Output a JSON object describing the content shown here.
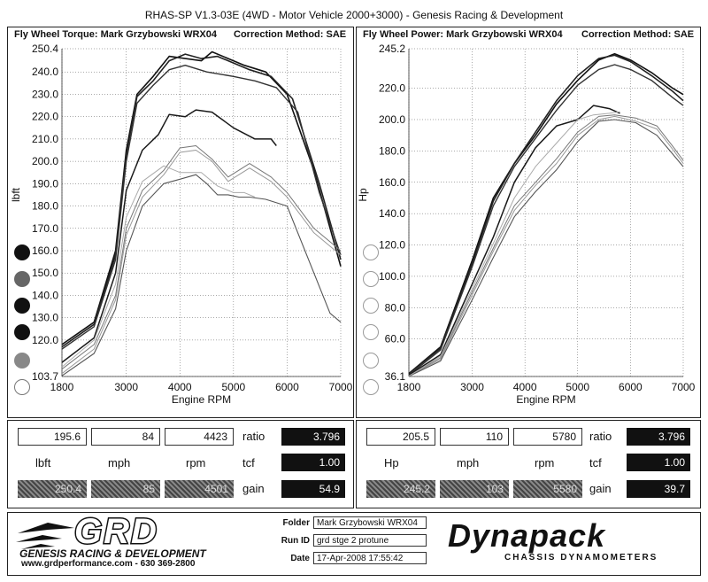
{
  "header": {
    "title": "RHAS-SP V1.3-03E  (4WD - Motor Vehicle 2000+3000) - Genesis Racing & Development"
  },
  "chart_data": [
    {
      "type": "line",
      "title": "Fly Wheel Torque: Mark Grzybowski WRX04",
      "correction": "Correction Method: SAE",
      "xlabel": "Engine RPM",
      "ylabel": "lbft",
      "xlim": [
        1800,
        7000
      ],
      "ylim": [
        103.7,
        250.4
      ],
      "xticks": [
        "1800",
        "3000",
        "4000",
        "5000",
        "6000",
        "7000"
      ],
      "xtick_values": [
        1800,
        3000,
        4000,
        5000,
        6000,
        7000
      ],
      "yticks": [
        "250.4",
        "240.0",
        "230.0",
        "220.0",
        "210.0",
        "200.0",
        "190.0",
        "180.0",
        "170.0",
        "160.0",
        "150.0",
        "140.0",
        "130.0",
        "120.0",
        "103.7"
      ],
      "ytick_values": [
        250.4,
        240,
        230,
        220,
        210,
        200,
        190,
        180,
        170,
        160,
        150,
        140,
        130,
        120,
        103.7
      ],
      "grid": true,
      "series": [
        {
          "values": [
            [
              1800,
              118
            ],
            [
              2400,
              128
            ],
            [
              2800,
              160
            ],
            [
              3000,
              205
            ],
            [
              3200,
              230
            ],
            [
              3500,
              238
            ],
            [
              3800,
              247
            ],
            [
              4100,
              246
            ],
            [
              4400,
              245
            ],
            [
              4600,
              249
            ],
            [
              4900,
              246
            ],
            [
              5200,
              243
            ],
            [
              5600,
              240
            ],
            [
              6000,
              230
            ],
            [
              6500,
              196
            ],
            [
              7000,
              153
            ]
          ]
        },
        {
          "values": [
            [
              1800,
              117
            ],
            [
              2400,
              127
            ],
            [
              2800,
              158
            ],
            [
              3000,
              203
            ],
            [
              3200,
              229
            ],
            [
              3500,
              236
            ],
            [
              3800,
              245
            ],
            [
              4100,
              248
            ],
            [
              4400,
              246
            ],
            [
              4700,
              247
            ],
            [
              5000,
              244
            ],
            [
              5300,
              241
            ],
            [
              5700,
              238
            ],
            [
              6100,
              228
            ],
            [
              6600,
              190
            ],
            [
              7000,
              156
            ]
          ]
        },
        {
          "values": [
            [
              1800,
              116
            ],
            [
              2400,
              126
            ],
            [
              2800,
              156
            ],
            [
              3000,
              200
            ],
            [
              3200,
              226
            ],
            [
              3500,
              234
            ],
            [
              3800,
              241
            ],
            [
              4100,
              243
            ],
            [
              4500,
              240
            ],
            [
              5000,
              238
            ],
            [
              5400,
              236
            ],
            [
              5800,
              233
            ],
            [
              6200,
              222
            ],
            [
              6600,
              186
            ],
            [
              7000,
              158
            ]
          ]
        },
        {
          "values": [
            [
              1800,
              110
            ],
            [
              2400,
              121
            ],
            [
              2800,
              150
            ],
            [
              3000,
              187
            ],
            [
              3300,
              205
            ],
            [
              3600,
              212
            ],
            [
              3800,
              221
            ],
            [
              4100,
              220
            ],
            [
              4300,
              223
            ],
            [
              4600,
              222
            ],
            [
              5000,
              215
            ],
            [
              5400,
              210
            ],
            [
              5700,
              210
            ],
            [
              5800,
              207
            ]
          ]
        },
        {
          "values": [
            [
              1800,
              107
            ],
            [
              2400,
              118
            ],
            [
              2800,
              140
            ],
            [
              3000,
              170
            ],
            [
              3300,
              187
            ],
            [
              3700,
              196
            ],
            [
              4000,
              206
            ],
            [
              4300,
              207
            ],
            [
              4600,
              201
            ],
            [
              4900,
              193
            ],
            [
              5300,
              199
            ],
            [
              5700,
              193
            ],
            [
              6000,
              186
            ],
            [
              6500,
              170
            ],
            [
              7000,
              160
            ]
          ]
        },
        {
          "values": [
            [
              1800,
              105
            ],
            [
              2400,
              116
            ],
            [
              2800,
              138
            ],
            [
              3000,
              167
            ],
            [
              3300,
              184
            ],
            [
              3700,
              194
            ],
            [
              4000,
              204
            ],
            [
              4300,
              205
            ],
            [
              4600,
              200
            ],
            [
              4900,
              191
            ],
            [
              5300,
              197
            ],
            [
              5700,
              191
            ],
            [
              6000,
              184
            ],
            [
              6500,
              168
            ],
            [
              7000,
              158
            ]
          ]
        },
        {
          "values": [
            [
              1800,
              104
            ],
            [
              2400,
              114
            ],
            [
              2800,
              134
            ],
            [
              3000,
              160
            ],
            [
              3300,
              180
            ],
            [
              3700,
              190
            ],
            [
              4000,
              192
            ],
            [
              4300,
              194
            ],
            [
              4500,
              190
            ],
            [
              4700,
              185
            ],
            [
              4900,
              185
            ],
            [
              5100,
              184
            ],
            [
              5300,
              184
            ],
            [
              5600,
              183
            ],
            [
              6000,
              180
            ],
            [
              6500,
              150
            ],
            [
              6800,
              132
            ],
            [
              7000,
              128
            ]
          ]
        },
        {
          "values": [
            [
              1800,
              108
            ],
            [
              2400,
              120
            ],
            [
              2800,
              145
            ],
            [
              3000,
              175
            ],
            [
              3300,
              191
            ],
            [
              3700,
              198
            ],
            [
              4000,
              195
            ],
            [
              4400,
              195
            ],
            [
              4700,
              189
            ],
            [
              5000,
              186
            ],
            [
              5200,
              186
            ],
            [
              5400,
              184
            ]
          ]
        }
      ],
      "readout": {
        "value": "195.6",
        "mph": "84",
        "rpm": "4423",
        "unit": "lbft",
        "mph_label": "mph",
        "rpm_label": "rpm",
        "max": "250.4",
        "max_mph": "85",
        "max_rpm": "4501",
        "ratio_label": "ratio",
        "ratio": "3.796",
        "tcf_label": "tcf",
        "tcf": "1.00",
        "gain_label": "gain",
        "gain": "54.9"
      }
    },
    {
      "type": "line",
      "title": "Fly Wheel Power: Mark Grzybowski WRX04",
      "correction": "Correction Method: SAE",
      "xlabel": "Engine RPM",
      "ylabel": "Hp",
      "xlim": [
        1800,
        7000
      ],
      "ylim": [
        36.1,
        245.2
      ],
      "xticks": [
        "1800",
        "3000",
        "4000",
        "5000",
        "6000",
        "7000"
      ],
      "xtick_values": [
        1800,
        3000,
        4000,
        5000,
        6000,
        7000
      ],
      "yticks": [
        "245.2",
        "220.0",
        "200.0",
        "180.0",
        "160.0",
        "140.0",
        "120.0",
        "100.0",
        "80.0",
        "60.0",
        "36.1"
      ],
      "ytick_values": [
        245.2,
        220,
        200,
        180,
        160,
        140,
        120,
        100,
        80,
        60,
        36.1
      ],
      "grid": true,
      "series": [
        {
          "values": [
            [
              1800,
              38
            ],
            [
              2400,
              55
            ],
            [
              3000,
              110
            ],
            [
              3400,
              150
            ],
            [
              3800,
              172
            ],
            [
              4200,
              190
            ],
            [
              4600,
              210
            ],
            [
              5000,
              225
            ],
            [
              5400,
              238
            ],
            [
              5700,
              242
            ],
            [
              6000,
              238
            ],
            [
              6400,
              230
            ],
            [
              6800,
              220
            ],
            [
              7000,
              216
            ]
          ]
        },
        {
          "values": [
            [
              1800,
              38
            ],
            [
              2400,
              54
            ],
            [
              3000,
              108
            ],
            [
              3400,
              148
            ],
            [
              3800,
              172
            ],
            [
              4200,
              192
            ],
            [
              4600,
              212
            ],
            [
              5000,
              228
            ],
            [
              5400,
              239
            ],
            [
              5700,
              241
            ],
            [
              6000,
              237
            ],
            [
              6400,
              228
            ],
            [
              6800,
              218
            ],
            [
              7000,
              212
            ]
          ]
        },
        {
          "values": [
            [
              1800,
              37
            ],
            [
              2400,
              53
            ],
            [
              3000,
              106
            ],
            [
              3400,
              145
            ],
            [
              3800,
              170
            ],
            [
              4200,
              188
            ],
            [
              4600,
              206
            ],
            [
              5000,
              222
            ],
            [
              5400,
              232
            ],
            [
              5700,
              235
            ],
            [
              6000,
              232
            ],
            [
              6400,
              225
            ],
            [
              6800,
              214
            ],
            [
              7000,
              209
            ]
          ]
        },
        {
          "values": [
            [
              1800,
              37
            ],
            [
              2400,
              50
            ],
            [
              3000,
              95
            ],
            [
              3400,
              125
            ],
            [
              3800,
              160
            ],
            [
              4200,
              182
            ],
            [
              4600,
              196
            ],
            [
              5000,
              200
            ],
            [
              5300,
              209
            ],
            [
              5600,
              207
            ],
            [
              5800,
              204
            ]
          ]
        },
        {
          "values": [
            [
              1800,
              36.5
            ],
            [
              2400,
              48
            ],
            [
              3000,
              90
            ],
            [
              3400,
              118
            ],
            [
              3800,
              145
            ],
            [
              4200,
              160
            ],
            [
              4600,
              175
            ],
            [
              5000,
              192
            ],
            [
              5400,
              202
            ],
            [
              5700,
              203
            ],
            [
              6100,
              201
            ],
            [
              6500,
              196
            ],
            [
              6800,
              183
            ],
            [
              7000,
              174
            ]
          ]
        },
        {
          "values": [
            [
              1800,
              36.3
            ],
            [
              2400,
              47
            ],
            [
              3000,
              88
            ],
            [
              3400,
              116
            ],
            [
              3800,
              142
            ],
            [
              4200,
              158
            ],
            [
              4600,
              172
            ],
            [
              5000,
              190
            ],
            [
              5400,
              200
            ],
            [
              5700,
              202
            ],
            [
              6100,
              199
            ],
            [
              6500,
              194
            ],
            [
              6800,
              181
            ],
            [
              7000,
              172
            ]
          ]
        },
        {
          "values": [
            [
              1800,
              36.2
            ],
            [
              2400,
              46
            ],
            [
              3000,
              85
            ],
            [
              3400,
              112
            ],
            [
              3800,
              138
            ],
            [
              4200,
              154
            ],
            [
              4600,
              168
            ],
            [
              5000,
              186
            ],
            [
              5400,
              199
            ],
            [
              5700,
              200
            ],
            [
              6100,
              198
            ],
            [
              6500,
              190
            ],
            [
              6800,
              178
            ],
            [
              7000,
              170
            ]
          ]
        },
        {
          "values": [
            [
              1800,
              36.4
            ],
            [
              2400,
              49
            ],
            [
              3000,
              92
            ],
            [
              3400,
              121
            ],
            [
              3800,
              150
            ],
            [
              4200,
              170
            ],
            [
              4600,
              185
            ],
            [
              5000,
              200
            ],
            [
              5300,
              203
            ],
            [
              5600,
              204
            ],
            [
              5800,
              205
            ]
          ]
        }
      ],
      "readout": {
        "value": "205.5",
        "mph": "110",
        "rpm": "5780",
        "unit": "Hp",
        "mph_label": "mph",
        "rpm_label": "rpm",
        "max": "245.2",
        "max_mph": "103",
        "max_rpm": "5580",
        "ratio_label": "ratio",
        "ratio": "3.796",
        "tcf_label": "tcf",
        "tcf": "1.00",
        "gain_label": "gain",
        "gain": "39.7"
      }
    }
  ],
  "footer": {
    "grd_logo": "GRD",
    "grd_name": "GENESIS RACING & DEVELOPMENT",
    "grd_contact": "www.grdperformance.com - 630 369-2800",
    "folder_label": "Folder",
    "folder": "Mark Grzybowski WRX04",
    "runid_label": "Run ID",
    "runid": "grd stge 2 protune",
    "date_label": "Date",
    "date": "17-Apr-2008   17:55:42",
    "dyn_logo": "Dynapack",
    "dyn_sub": "CHASSIS   DYNAMOMETERS"
  },
  "colors": {
    "ink": "#111111",
    "paper": "#ffffff",
    "grid": "#444444"
  }
}
